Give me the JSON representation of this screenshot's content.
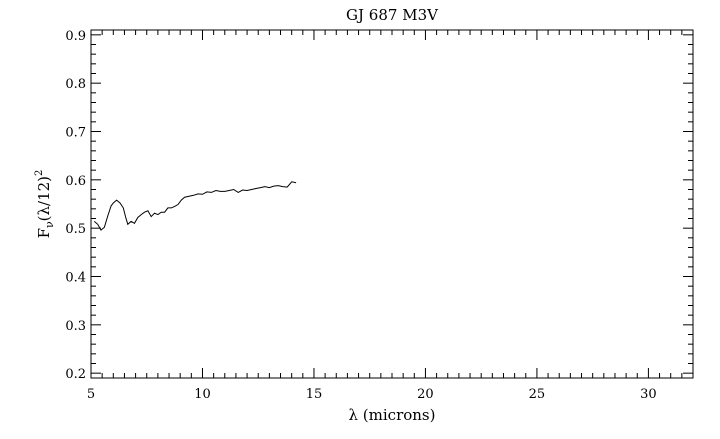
{
  "chart_data": {
    "type": "line",
    "title": "GJ 687 M3V",
    "xlabel": "λ (microns)",
    "ylabel": "F_ν(λ/12)²",
    "ylabel_parts": {
      "base": "F",
      "sub": "ν",
      "mid": "(λ/12)",
      "sup": "2"
    },
    "xlim": [
      5,
      32
    ],
    "ylim": [
      0.19,
      0.91
    ],
    "xticks": [
      5,
      10,
      15,
      20,
      25,
      30
    ],
    "xtick_labels": [
      "5",
      "10",
      "15",
      "20",
      "25",
      "30"
    ],
    "yticks": [
      0.2,
      0.3,
      0.4,
      0.5,
      0.6,
      0.7,
      0.8,
      0.9
    ],
    "ytick_labels": [
      "0.2",
      "0.3",
      "0.4",
      "0.5",
      "0.6",
      "0.7",
      "0.8",
      "0.9"
    ],
    "x_minor_step": 0.5,
    "y_minor_step": 0.02,
    "grid": false,
    "series": [
      {
        "color": "#000000",
        "x": [
          5.15,
          5.3,
          5.45,
          5.6,
          5.75,
          5.9,
          6.0,
          6.15,
          6.3,
          6.45,
          6.55,
          6.65,
          6.8,
          6.95,
          7.1,
          7.25,
          7.4,
          7.55,
          7.7,
          7.85,
          8.0,
          8.15,
          8.3,
          8.45,
          8.6,
          8.75,
          8.9,
          9.05,
          9.2,
          9.4,
          9.6,
          9.8,
          10.0,
          10.2,
          10.4,
          10.6,
          10.8,
          11.0,
          11.2,
          11.4,
          11.6,
          11.8,
          12.0,
          12.2,
          12.4,
          12.6,
          12.8,
          13.0,
          13.2,
          13.4,
          13.6,
          13.8,
          14.0,
          14.2
        ],
        "y": [
          0.514,
          0.508,
          0.496,
          0.502,
          0.525,
          0.546,
          0.552,
          0.558,
          0.552,
          0.542,
          0.523,
          0.508,
          0.514,
          0.51,
          0.522,
          0.528,
          0.533,
          0.536,
          0.524,
          0.531,
          0.528,
          0.533,
          0.533,
          0.542,
          0.542,
          0.545,
          0.549,
          0.558,
          0.564,
          0.566,
          0.568,
          0.571,
          0.57,
          0.575,
          0.574,
          0.578,
          0.576,
          0.576,
          0.578,
          0.58,
          0.574,
          0.579,
          0.578,
          0.58,
          0.582,
          0.584,
          0.586,
          0.584,
          0.587,
          0.588,
          0.586,
          0.585,
          0.596,
          0.594
        ]
      }
    ]
  }
}
